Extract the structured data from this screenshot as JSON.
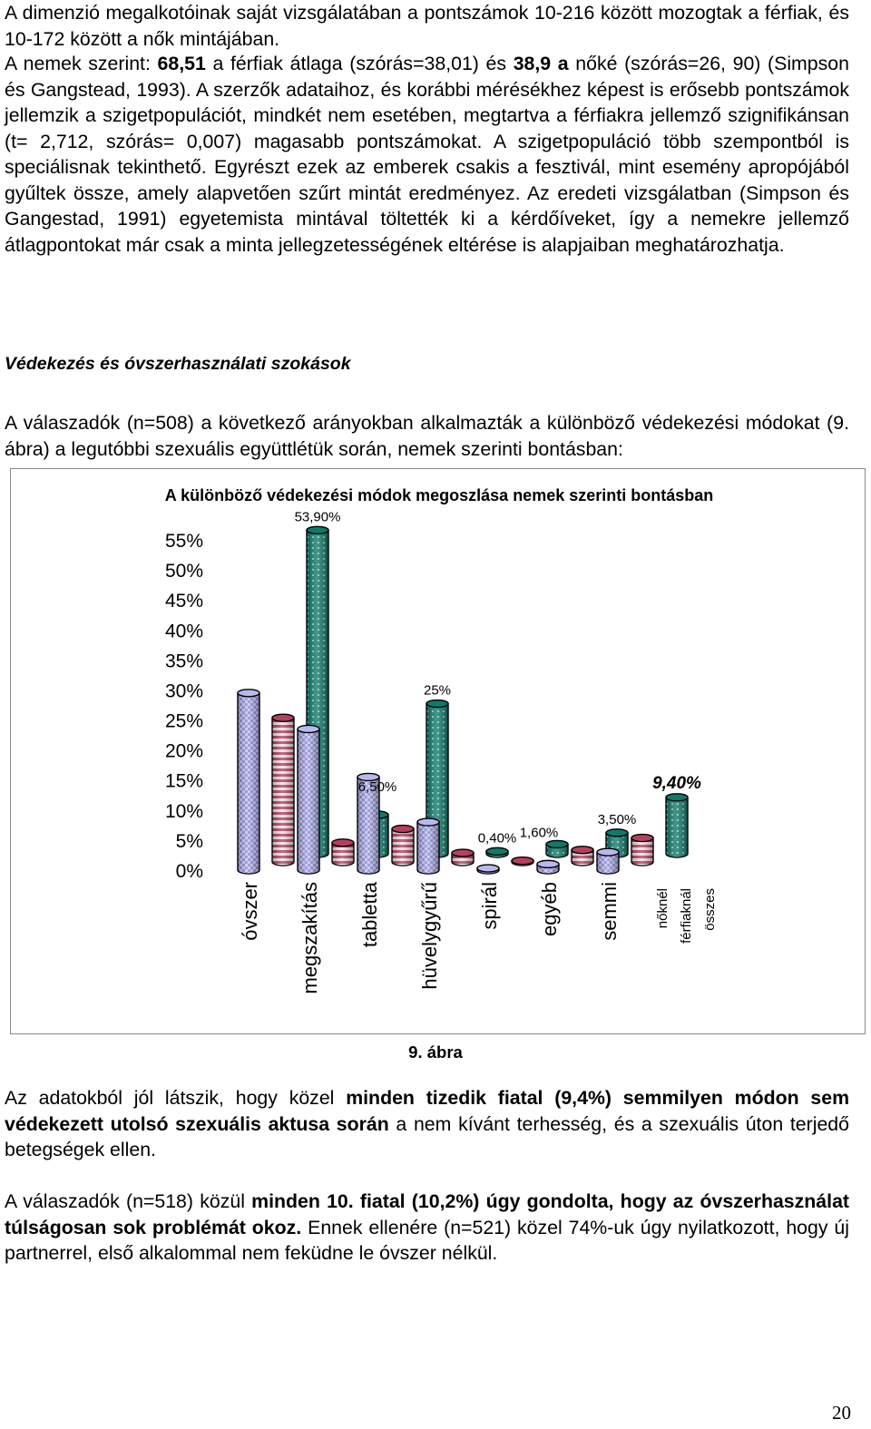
{
  "para1": "A dimenzió megalkotóinak saját vizsgálatában a pontszámok 10-216 között mozogtak a férfiak, és 10-172 között a nők mintájában.",
  "para2": {
    "t1": "A nemek szerint: ",
    "b1": "68,51",
    "t2": " a férfiak átlaga (szórás=38,01) és ",
    "b2": "38,9 a",
    "t3": " nőké (szórás=26, 90) (Simpson és Gangstead, 1993). A szerzők adataihoz, és korábbi mérésékhez képest is erősebb pontszámok jellemzik a szigetpopulációt, mindkét nem esetében, megtartva a férfiakra jellemző szignifikánsan (t= 2,712, szórás= 0,007) magasabb pontszámokat. A szigetpopuláció több szempontból is speciálisnak tekinthető. Egyrészt ezek az emberek csakis a fesztivál, mint esemény apropójából gyűltek össze, amely alapvetően szűrt mintát eredményez. Az eredeti vizsgálatban (Simpson és Gangestad, 1991) egyetemista mintával töltették ki a kérdőíveket, így a nemekre jellemző átlagpontokat már csak a minta jellegzetességének eltérése is alapjaiban meghatározhatja."
  },
  "section_heading": "Védekezés és óvszerhasználati szokások",
  "para3": "A válaszadók (n=508) a következő arányokban alkalmazták a különböző védekezési módokat (9. ábra) a legutóbbi szexuális együttlétük során, nemek szerinti bontásban:",
  "figure_caption": "9. ábra",
  "para4": {
    "t1": "Az adatokból jól látszik, hogy közel ",
    "b1": "minden tizedik fiatal (9,4%) semmilyen módon sem védekezett utolsó szexuális aktusa során",
    "t2": " a nem kívánt terhesség, és a szexuális úton terjedő betegségek ellen."
  },
  "para5": {
    "t1": "A válaszadók (n=518) közül ",
    "b1": "minden 10. fiatal (10,2%) úgy gondolta, hogy az óvszerhasználat túlságosan sok problémát okoz.",
    "t2": " Ennek ellenére (n=521) közel 74%-uk úgy nyilatkozott, hogy új partnerrel, első alkalommal nem feküdne le óvszer nélkül."
  },
  "page_number": "20",
  "chart_data": {
    "type": "bar",
    "title": "A különböző védekezési módok megoszlása nemek szerinti bontásban",
    "categories": [
      "óvszer",
      "megszakítás",
      "tabletta",
      "hüvelygyűrű",
      "spirál",
      "egyéb",
      "semmi"
    ],
    "series": [
      {
        "name": "nőknél",
        "values": [
          29.5,
          23.5,
          15.5,
          8.0,
          0.3,
          1.0,
          3.0
        ],
        "color": "#b9b9f0",
        "pattern": "checker"
      },
      {
        "name": "férfiaknál",
        "values": [
          24.0,
          3.2,
          5.5,
          1.5,
          0.2,
          2.0,
          4.0
        ],
        "color": "#b5405c",
        "pattern": "stripes"
      },
      {
        "name": "összes",
        "values": [
          53.9,
          6.5,
          25.0,
          0.4,
          1.6,
          3.5,
          9.4
        ],
        "color": "#0f7a6a",
        "pattern": "dots"
      }
    ],
    "data_labels": [
      "53,90%",
      "6,50%",
      "25%",
      "0,40%",
      "1,60%",
      "3,50%",
      "9,40%"
    ],
    "y_ticks": [
      "55%",
      "50%",
      "45%",
      "40%",
      "35%",
      "30%",
      "25%",
      "20%",
      "15%",
      "10%",
      "5%",
      "0%"
    ],
    "ylim": [
      0,
      55
    ],
    "grid": false
  }
}
